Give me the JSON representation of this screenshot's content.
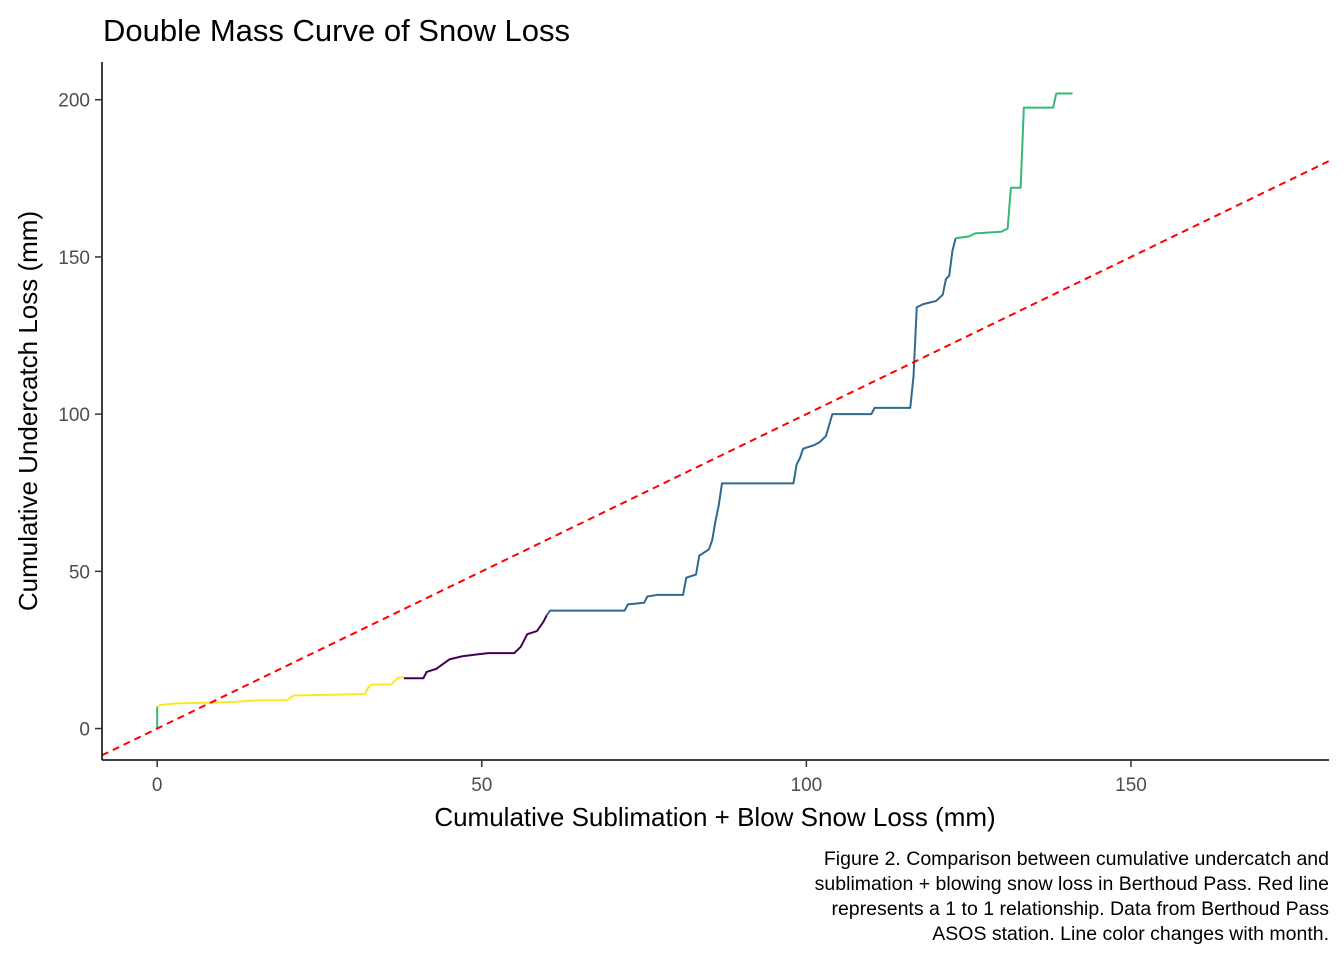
{
  "chart_data": {
    "type": "line",
    "title": "Double Mass Curve of Snow Loss",
    "xlabel": "Cumulative Sublimation + Blow Snow Loss (mm)",
    "ylabel": "Cumulative Undercatch Loss (mm)",
    "xlim": [
      -8.5,
      180.5
    ],
    "ylim": [
      -10,
      212
    ],
    "x_ticks": [
      0,
      50,
      100,
      150
    ],
    "y_ticks": [
      0,
      50,
      100,
      150,
      200
    ],
    "grid": false,
    "legend": "none",
    "caption": [
      "Figure 2. Comparison between cumulative undercatch and",
      "sublimation + blowing snow loss in Berthoud Pass. Red line",
      "represents a 1 to 1 relationship. Data from Berthoud Pass",
      "ASOS station. Line color changes with month."
    ],
    "reference_line": {
      "slope": 1,
      "intercept": 0,
      "color": "#ff0000",
      "style": "dashed"
    },
    "series": [
      {
        "color": "#35b779",
        "points": [
          [
            0,
            0
          ],
          [
            0,
            7
          ]
        ]
      },
      {
        "color": "#fde725",
        "points": [
          [
            0,
            7
          ],
          [
            0.5,
            7.5
          ],
          [
            3,
            8
          ],
          [
            8,
            8.2
          ],
          [
            12,
            8.5
          ],
          [
            14,
            8.8
          ],
          [
            16,
            9
          ],
          [
            20,
            9
          ],
          [
            21,
            10.5
          ],
          [
            28,
            10.8
          ],
          [
            32,
            11
          ],
          [
            32.5,
            13
          ],
          [
            33,
            14
          ],
          [
            36,
            14
          ],
          [
            37,
            16
          ],
          [
            38,
            16.5
          ]
        ]
      },
      {
        "color": "#440154",
        "points": [
          [
            38,
            16
          ],
          [
            41,
            16
          ],
          [
            41.5,
            18
          ],
          [
            43,
            19
          ],
          [
            45,
            22
          ],
          [
            47,
            23
          ],
          [
            49,
            23.5
          ],
          [
            51,
            24
          ],
          [
            55,
            24
          ],
          [
            55.5,
            25
          ],
          [
            56,
            26
          ],
          [
            57,
            30
          ],
          [
            58.5,
            31
          ],
          [
            59.5,
            34
          ],
          [
            60,
            36
          ]
        ]
      },
      {
        "color": "#31688e",
        "points": [
          [
            60,
            36
          ],
          [
            60.5,
            37.5
          ],
          [
            72,
            37.5
          ],
          [
            72.5,
            39.5
          ],
          [
            75,
            40
          ],
          [
            75.5,
            42
          ],
          [
            77,
            42.5
          ],
          [
            81,
            42.5
          ],
          [
            81.5,
            48
          ],
          [
            83,
            49
          ],
          [
            83.5,
            55
          ],
          [
            85,
            57
          ],
          [
            85.5,
            60
          ],
          [
            86,
            66
          ],
          [
            86.5,
            71
          ],
          [
            87,
            78
          ],
          [
            98,
            78
          ],
          [
            98.5,
            84
          ],
          [
            99,
            86
          ],
          [
            99.5,
            89
          ],
          [
            101,
            90
          ],
          [
            102,
            91
          ],
          [
            103,
            93
          ],
          [
            104,
            100
          ],
          [
            110,
            100
          ],
          [
            110.5,
            102
          ],
          [
            116,
            102
          ],
          [
            116.5,
            112
          ],
          [
            117,
            134
          ],
          [
            118,
            135
          ],
          [
            120,
            136
          ],
          [
            121,
            138
          ],
          [
            121.5,
            143
          ],
          [
            122,
            144
          ],
          [
            122.5,
            152
          ],
          [
            123,
            156
          ]
        ]
      },
      {
        "color": "#35b779",
        "points": [
          [
            123,
            156
          ],
          [
            125,
            156.5
          ],
          [
            126,
            157.5
          ],
          [
            130,
            158
          ],
          [
            131,
            159
          ],
          [
            131.5,
            172
          ],
          [
            133,
            172
          ],
          [
            133.5,
            197.5
          ],
          [
            138,
            197.5
          ],
          [
            138.5,
            202
          ],
          [
            141,
            202
          ]
        ]
      }
    ]
  }
}
